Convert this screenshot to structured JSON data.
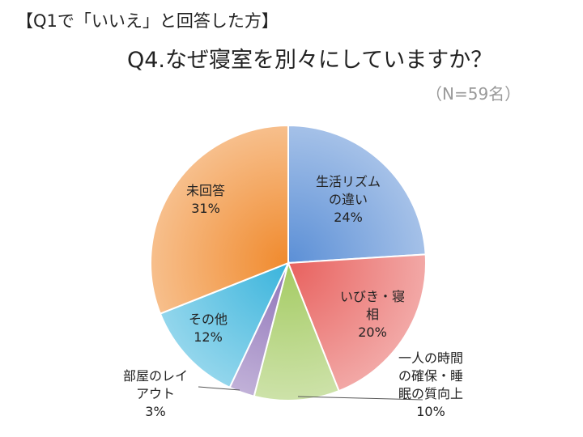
{
  "header": {
    "pre_title": "【Q1で「いいえ」と回答した方】",
    "title": "Q4.なぜ寝室を別々にしていますか？",
    "sample_size": "（N=59名）"
  },
  "chart_data": {
    "type": "pie",
    "start_angle": "12 o'clock",
    "direction": "clockwise",
    "slices": [
      {
        "label": "生活リズムの違い",
        "label_lines": [
          "生活リズム",
          "の違い"
        ],
        "value_label": "24%",
        "value": 24,
        "color": "#5b8fd6"
      },
      {
        "label": "いびき・寝相",
        "label_lines": [
          "いびき・寝",
          "相"
        ],
        "value_label": "20%",
        "value": 20,
        "color": "#e8615e"
      },
      {
        "label": "一人の時間の確保・睡眠の質向上",
        "label_lines": [
          "一人の時間",
          "の確保・睡",
          "眠の質向上"
        ],
        "value_label": "10%",
        "value": 10,
        "color": "#a4cb62"
      },
      {
        "label": "部屋のレイアウト",
        "label_lines": [
          "部屋のレイ",
          "アウト"
        ],
        "value_label": "3%",
        "value": 3,
        "color": "#8e72b8"
      },
      {
        "label": "その他",
        "label_lines": [
          "その他"
        ],
        "value_label": "12%",
        "value": 12,
        "color": "#3ab4dc"
      },
      {
        "label": "未回答",
        "label_lines": [
          "未回答"
        ],
        "value_label": "31%",
        "value": 31,
        "color": "#f08a2d"
      }
    ]
  }
}
